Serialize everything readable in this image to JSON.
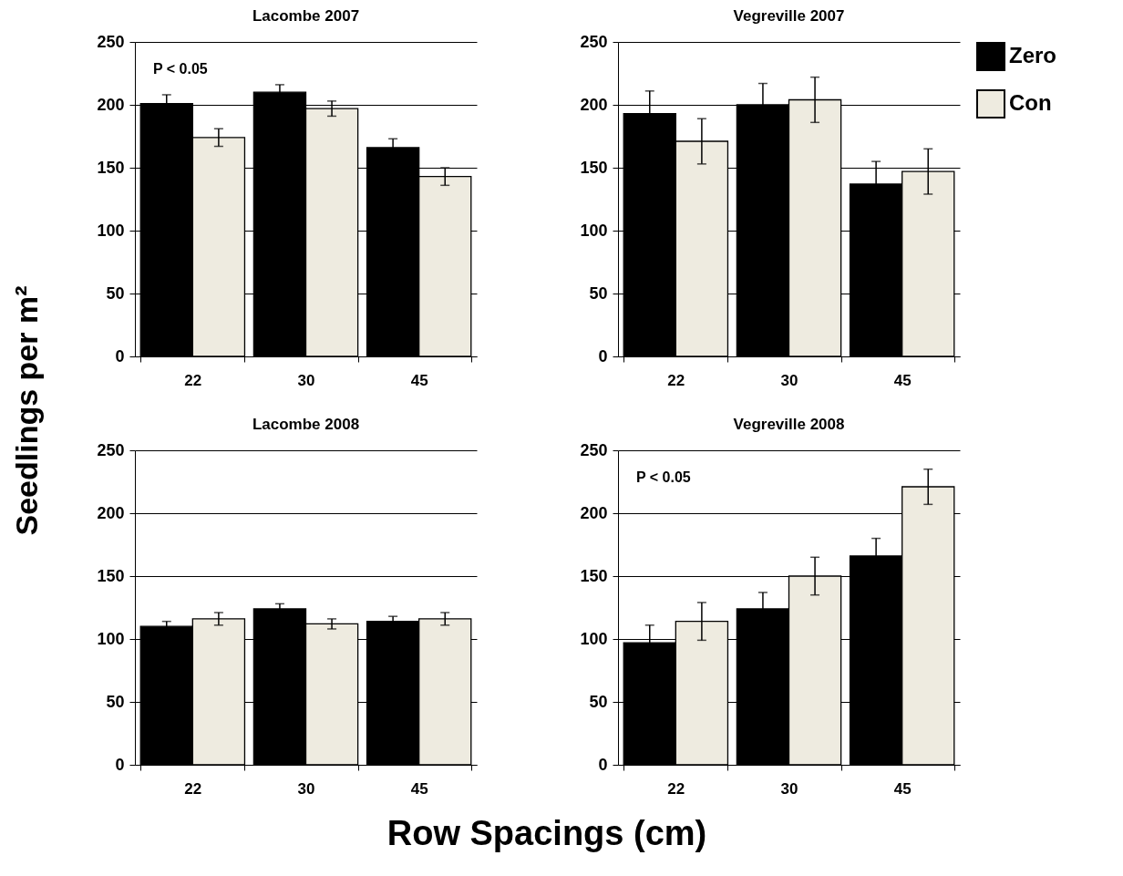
{
  "chart_data": [
    {
      "type": "bar",
      "title": "Lacombe 2007",
      "ylabel": "Seedlings per m²",
      "categories": [
        "22",
        "30",
        "45"
      ],
      "ylim": [
        0,
        250
      ],
      "yticks": [
        0,
        50,
        100,
        150,
        200,
        250
      ],
      "grid": "y",
      "annotations": [
        "P < 0.05"
      ],
      "series": [
        {
          "color": "#000000",
          "values": [
            201,
            210,
            166
          ],
          "errors": [
            7,
            6,
            7
          ]
        },
        {
          "color": "#eeebe0",
          "values": [
            174,
            197,
            143
          ],
          "errors": [
            7,
            6,
            7
          ]
        }
      ]
    },
    {
      "type": "bar",
      "title": "Vegreville 2007",
      "categories": [
        "22",
        "30",
        "45"
      ],
      "ylim": [
        0,
        250
      ],
      "yticks": [
        0,
        50,
        100,
        150,
        200,
        250
      ],
      "grid": "y",
      "legend": "top right",
      "series": [
        {
          "name": "Zero",
          "color": "#000000",
          "values": [
            193,
            200,
            137
          ],
          "errors": [
            18,
            17,
            18
          ]
        },
        {
          "name": "Con",
          "color": "#eeebe0",
          "values": [
            171,
            204,
            147
          ],
          "errors": [
            18,
            18,
            18
          ]
        }
      ]
    },
    {
      "type": "bar",
      "title": "Lacombe 2008",
      "xlabel": "Row Spacings (cm)",
      "categories": [
        "22",
        "30",
        "45"
      ],
      "ylim": [
        0,
        250
      ],
      "yticks": [
        0,
        50,
        100,
        150,
        200,
        250
      ],
      "grid": "y",
      "series": [
        {
          "color": "#000000",
          "values": [
            110,
            124,
            114
          ],
          "errors": [
            4,
            4,
            4
          ]
        },
        {
          "color": "#eeebe0",
          "values": [
            116,
            112,
            116
          ],
          "errors": [
            5,
            4,
            5
          ]
        }
      ]
    },
    {
      "type": "bar",
      "title": "Vegreville 2008",
      "categories": [
        "22",
        "30",
        "45"
      ],
      "ylim": [
        0,
        250
      ],
      "yticks": [
        0,
        50,
        100,
        150,
        200,
        250
      ],
      "grid": "y",
      "annotations": [
        "P < 0.05"
      ],
      "series": [
        {
          "color": "#000000",
          "values": [
            97,
            124,
            166
          ],
          "errors": [
            14,
            13,
            14
          ]
        },
        {
          "color": "#eeebe0",
          "values": [
            114,
            150,
            221
          ],
          "errors": [
            15,
            15,
            14
          ]
        }
      ]
    }
  ]
}
